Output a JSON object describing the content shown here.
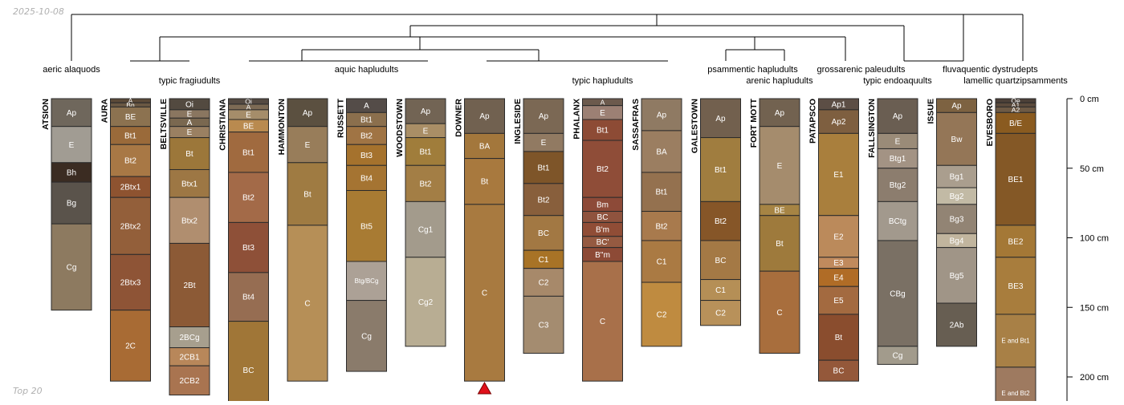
{
  "header": {
    "date_stamp": "2025-10-08"
  },
  "footer": {
    "caption": "Top 20"
  },
  "depth_axis": {
    "unit": "cm",
    "max_depth": 220,
    "ticks": [
      {
        "depth": 0,
        "label": "0 cm"
      },
      {
        "depth": 50,
        "label": "50 cm"
      },
      {
        "depth": 100,
        "label": "100 cm"
      },
      {
        "depth": 150,
        "label": "150 cm"
      },
      {
        "depth": 200,
        "label": "200 cm"
      }
    ]
  },
  "groups": [
    {
      "label": "aeric alaquods"
    },
    {
      "label": "typic fragiudults"
    },
    {
      "label": "aquic hapludults"
    },
    {
      "label": "typic hapludults"
    },
    {
      "label": "psammentic hapludults"
    },
    {
      "label": "arenic hapludults"
    },
    {
      "label": "grossarenic paleudults"
    },
    {
      "label": "typic endoaquults"
    },
    {
      "label": "fluvaquentic dystrudepts"
    },
    {
      "label": "lamellic quartzipsamments"
    }
  ],
  "profiles": [
    {
      "name": "ATSION",
      "horizons": [
        {
          "name": "Ap",
          "top": 0,
          "bottom": 20,
          "color": "#6f675c"
        },
        {
          "name": "E",
          "top": 20,
          "bottom": 46,
          "color": "#a19c93"
        },
        {
          "name": "Bh",
          "top": 46,
          "bottom": 60,
          "color": "#3b2c22"
        },
        {
          "name": "Bg",
          "top": 60,
          "bottom": 90,
          "color": "#5a534b"
        },
        {
          "name": "Cg",
          "top": 90,
          "bottom": 152,
          "color": "#8d7a60"
        }
      ]
    },
    {
      "name": "AURA",
      "horizons": [
        {
          "name": "A",
          "top": 0,
          "bottom": 3,
          "color": "#5b4a38"
        },
        {
          "name": "Bn",
          "top": 3,
          "bottom": 6,
          "color": "#6a5843"
        },
        {
          "name": "BE",
          "top": 6,
          "bottom": 20,
          "color": "#8c7250"
        },
        {
          "name": "Bt1",
          "top": 20,
          "bottom": 33,
          "color": "#9a6a3a"
        },
        {
          "name": "Bt2",
          "top": 33,
          "bottom": 56,
          "color": "#a87845"
        },
        {
          "name": "2Btx1",
          "top": 56,
          "bottom": 71,
          "color": "#8e5330"
        },
        {
          "name": "2Btx2",
          "top": 71,
          "bottom": 112,
          "color": "#935f3a"
        },
        {
          "name": "2Btx3",
          "top": 112,
          "bottom": 152,
          "color": "#8e5436"
        },
        {
          "name": "2C",
          "top": 152,
          "bottom": 203,
          "color": "#a86b34"
        }
      ]
    },
    {
      "name": "BELTSVILLE",
      "horizons": [
        {
          "name": "Oi",
          "top": 0,
          "bottom": 8,
          "color": "#534a40"
        },
        {
          "name": "E",
          "top": 8,
          "bottom": 14,
          "color": "#8a7660"
        },
        {
          "name": "A",
          "top": 14,
          "bottom": 20,
          "color": "#7a6850"
        },
        {
          "name": "E",
          "top": 20,
          "bottom": 28,
          "color": "#9a8062"
        },
        {
          "name": "Bt",
          "top": 28,
          "bottom": 51,
          "color": "#9c773a"
        },
        {
          "name": "Btx1",
          "top": 51,
          "bottom": 71,
          "color": "#9d7744"
        },
        {
          "name": "Btx2",
          "top": 71,
          "bottom": 104,
          "color": "#b08e6f"
        },
        {
          "name": "2Bt",
          "top": 104,
          "bottom": 164,
          "color": "#8c5a36"
        },
        {
          "name": "2BCg",
          "top": 164,
          "bottom": 179,
          "color": "#a79f8e"
        },
        {
          "name": "2CB1",
          "top": 179,
          "bottom": 192,
          "color": "#b8875a"
        },
        {
          "name": "2CB2",
          "top": 192,
          "bottom": 213,
          "color": "#a97450"
        }
      ]
    },
    {
      "name": "CHRISTIANA",
      "horizons": [
        {
          "name": "Oi",
          "top": 0,
          "bottom": 4,
          "color": "#544a42"
        },
        {
          "name": "A",
          "top": 4,
          "bottom": 8,
          "color": "#7d6b55"
        },
        {
          "name": "E",
          "top": 8,
          "bottom": 15,
          "color": "#a58d6a"
        },
        {
          "name": "BE",
          "top": 15,
          "bottom": 24,
          "color": "#b98a4f"
        },
        {
          "name": "Bt1",
          "top": 24,
          "bottom": 53,
          "color": "#a06a3f"
        },
        {
          "name": "Bt2",
          "top": 53,
          "bottom": 89,
          "color": "#a36a48"
        },
        {
          "name": "Bt3",
          "top": 89,
          "bottom": 125,
          "color": "#8e5038"
        },
        {
          "name": "Bt4",
          "top": 125,
          "bottom": 160,
          "color": "#966d52"
        },
        {
          "name": "BC",
          "top": 160,
          "bottom": 230,
          "color": "#a07637"
        }
      ]
    },
    {
      "name": "HAMMONTON",
      "horizons": [
        {
          "name": "Ap",
          "top": 0,
          "bottom": 20,
          "color": "#5b5040"
        },
        {
          "name": "E",
          "top": 20,
          "bottom": 46,
          "color": "#987d5a"
        },
        {
          "name": "Bt",
          "top": 46,
          "bottom": 91,
          "color": "#9f7b42"
        },
        {
          "name": "C",
          "top": 91,
          "bottom": 203,
          "color": "#b68f57"
        }
      ]
    },
    {
      "name": "RUSSETT",
      "horizons": [
        {
          "name": "A",
          "top": 0,
          "bottom": 10,
          "color": "#544c48"
        },
        {
          "name": "Bt1",
          "top": 10,
          "bottom": 20,
          "color": "#8b6f4d"
        },
        {
          "name": "Bt2",
          "top": 20,
          "bottom": 33,
          "color": "#a07444"
        },
        {
          "name": "Bt3",
          "top": 33,
          "bottom": 48,
          "color": "#a5722d"
        },
        {
          "name": "Bt4",
          "top": 48,
          "bottom": 66,
          "color": "#a57432"
        },
        {
          "name": "Bt5",
          "top": 66,
          "bottom": 117,
          "color": "#a87b33"
        },
        {
          "name": "Btg/BCg",
          "top": 117,
          "bottom": 145,
          "color": "#aca196"
        },
        {
          "name": "Cg",
          "top": 145,
          "bottom": 196,
          "color": "#8a7b6b"
        }
      ]
    },
    {
      "name": "WOODSTOWN",
      "horizons": [
        {
          "name": "Ap",
          "top": 0,
          "bottom": 18,
          "color": "#726454"
        },
        {
          "name": "E",
          "top": 18,
          "bottom": 28,
          "color": "#a98e66"
        },
        {
          "name": "Bt1",
          "top": 28,
          "bottom": 48,
          "color": "#a07d3b"
        },
        {
          "name": "Bt2",
          "top": 48,
          "bottom": 74,
          "color": "#a37e45"
        },
        {
          "name": "Cg1",
          "top": 74,
          "bottom": 114,
          "color": "#a39b8c"
        },
        {
          "name": "Cg2",
          "top": 114,
          "bottom": 178,
          "color": "#b8ad93"
        }
      ]
    },
    {
      "name": "DOWNER",
      "horizons": [
        {
          "name": "Ap",
          "top": 0,
          "bottom": 25,
          "color": "#716150"
        },
        {
          "name": "BA",
          "top": 25,
          "bottom": 43,
          "color": "#a3773c"
        },
        {
          "name": "Bt",
          "top": 43,
          "bottom": 76,
          "color": "#a8793e"
        },
        {
          "name": "C",
          "top": 76,
          "bottom": 203,
          "color": "#a87a40"
        }
      ]
    },
    {
      "name": "INGLESIDE",
      "horizons": [
        {
          "name": "Ap",
          "top": 0,
          "bottom": 25,
          "color": "#7b6854"
        },
        {
          "name": "E",
          "top": 25,
          "bottom": 38,
          "color": "#917a62"
        },
        {
          "name": "Bt1",
          "top": 38,
          "bottom": 61,
          "color": "#7e5529"
        },
        {
          "name": "Bt2",
          "top": 61,
          "bottom": 84,
          "color": "#885f3c"
        },
        {
          "name": "BC",
          "top": 84,
          "bottom": 109,
          "color": "#a27843"
        },
        {
          "name": "C1",
          "top": 109,
          "bottom": 122,
          "color": "#a87326"
        },
        {
          "name": "C2",
          "top": 122,
          "bottom": 142,
          "color": "#a7896a"
        },
        {
          "name": "C3",
          "top": 142,
          "bottom": 183,
          "color": "#a48c70"
        }
      ]
    },
    {
      "name": "PHALANX",
      "horizons": [
        {
          "name": "A",
          "top": 0,
          "bottom": 5,
          "color": "#6c5a4d"
        },
        {
          "name": "E",
          "top": 5,
          "bottom": 15,
          "color": "#9c8074"
        },
        {
          "name": "Bt1",
          "top": 15,
          "bottom": 30,
          "color": "#8d4b35"
        },
        {
          "name": "Bt2",
          "top": 30,
          "bottom": 71,
          "color": "#8f4d38"
        },
        {
          "name": "Bm",
          "top": 71,
          "bottom": 81,
          "color": "#8d4a38"
        },
        {
          "name": "BC",
          "top": 81,
          "bottom": 89,
          "color": "#8f533e"
        },
        {
          "name": "B'm",
          "top": 89,
          "bottom": 99,
          "color": "#904d36"
        },
        {
          "name": "BC'",
          "top": 99,
          "bottom": 107,
          "color": "#955a41"
        },
        {
          "name": "B''m",
          "top": 107,
          "bottom": 117,
          "color": "#8d4a36"
        },
        {
          "name": "C",
          "top": 117,
          "bottom": 203,
          "color": "#a8704a"
        }
      ]
    },
    {
      "name": "SASSAFRAS",
      "horizons": [
        {
          "name": "Ap",
          "top": 0,
          "bottom": 23,
          "color": "#8f7a63"
        },
        {
          "name": "BA",
          "top": 23,
          "bottom": 53,
          "color": "#9b7e61"
        },
        {
          "name": "Bt1",
          "top": 53,
          "bottom": 81,
          "color": "#94714f"
        },
        {
          "name": "Bt2",
          "top": 81,
          "bottom": 102,
          "color": "#a87a4d"
        },
        {
          "name": "C1",
          "top": 102,
          "bottom": 132,
          "color": "#aa7a43"
        },
        {
          "name": "C2",
          "top": 132,
          "bottom": 178,
          "color": "#bf8b40"
        }
      ]
    },
    {
      "name": "GALESTOWN",
      "horizons": [
        {
          "name": "Ap",
          "top": 0,
          "bottom": 28,
          "color": "#72604e"
        },
        {
          "name": "Bt1",
          "top": 28,
          "bottom": 74,
          "color": "#a07d3f"
        },
        {
          "name": "Bt2",
          "top": 74,
          "bottom": 102,
          "color": "#865628"
        },
        {
          "name": "BC",
          "top": 102,
          "bottom": 130,
          "color": "#a47945"
        },
        {
          "name": "C1",
          "top": 130,
          "bottom": 145,
          "color": "#b58f56"
        },
        {
          "name": "C2",
          "top": 145,
          "bottom": 163,
          "color": "#b8915a"
        }
      ]
    },
    {
      "name": "FORT MOTT",
      "horizons": [
        {
          "name": "Ap",
          "top": 0,
          "bottom": 20,
          "color": "#726250"
        },
        {
          "name": "E",
          "top": 20,
          "bottom": 76,
          "color": "#a58c6d"
        },
        {
          "name": "BE",
          "top": 76,
          "bottom": 84,
          "color": "#a68444"
        },
        {
          "name": "Bt",
          "top": 84,
          "bottom": 124,
          "color": "#9e7a3c"
        },
        {
          "name": "C",
          "top": 124,
          "bottom": 183,
          "color": "#a86e3d"
        }
      ]
    },
    {
      "name": "PATAPSCO",
      "horizons": [
        {
          "name": "Ap1",
          "top": 0,
          "bottom": 8,
          "color": "#5c4e45"
        },
        {
          "name": "Ap2",
          "top": 8,
          "bottom": 25,
          "color": "#7e5f40"
        },
        {
          "name": "E1",
          "top": 25,
          "bottom": 84,
          "color": "#a97f3d"
        },
        {
          "name": "E2",
          "top": 84,
          "bottom": 114,
          "color": "#bb8a5b"
        },
        {
          "name": "E3",
          "top": 114,
          "bottom": 122,
          "color": "#c08a5d"
        },
        {
          "name": "E4",
          "top": 122,
          "bottom": 135,
          "color": "#b06c26"
        },
        {
          "name": "E5",
          "top": 135,
          "bottom": 155,
          "color": "#a36a40"
        },
        {
          "name": "Bt",
          "top": 155,
          "bottom": 188,
          "color": "#8a4d2e"
        },
        {
          "name": "BC",
          "top": 188,
          "bottom": 203,
          "color": "#94583a"
        }
      ]
    },
    {
      "name": "FALLSINGTON",
      "horizons": [
        {
          "name": "Ap",
          "top": 0,
          "bottom": 25,
          "color": "#6a5e52"
        },
        {
          "name": "E",
          "top": 25,
          "bottom": 36,
          "color": "#9a8b78"
        },
        {
          "name": "Btg1",
          "top": 36,
          "bottom": 50,
          "color": "#a39384"
        },
        {
          "name": "Btg2",
          "top": 50,
          "bottom": 74,
          "color": "#8c7d6e"
        },
        {
          "name": "BCtg",
          "top": 74,
          "bottom": 102,
          "color": "#a2998d"
        },
        {
          "name": "CBg",
          "top": 102,
          "bottom": 178,
          "color": "#7a7064"
        },
        {
          "name": "Cg",
          "top": 178,
          "bottom": 191,
          "color": "#a29b8c"
        }
      ]
    },
    {
      "name": "ISSUE",
      "horizons": [
        {
          "name": "Ap",
          "top": 0,
          "bottom": 10,
          "color": "#7d6241"
        },
        {
          "name": "Bw",
          "top": 10,
          "bottom": 48,
          "color": "#947657"
        },
        {
          "name": "Bg1",
          "top": 48,
          "bottom": 64,
          "color": "#aa9e8e"
        },
        {
          "name": "Bg2",
          "top": 64,
          "bottom": 76,
          "color": "#c2baa5"
        },
        {
          "name": "Bg3",
          "top": 76,
          "bottom": 97,
          "color": "#928474"
        },
        {
          "name": "Bg4",
          "top": 97,
          "bottom": 107,
          "color": "#c1b59e"
        },
        {
          "name": "Bg5",
          "top": 107,
          "bottom": 147,
          "color": "#a09587"
        },
        {
          "name": "2Ab",
          "top": 147,
          "bottom": 178,
          "color": "#675e52"
        }
      ]
    },
    {
      "name": "EVESBORO",
      "horizons": [
        {
          "name": "Oe",
          "top": 0,
          "bottom": 3,
          "color": "#4c4038"
        },
        {
          "name": "A1",
          "top": 3,
          "bottom": 6,
          "color": "#5c4b3c"
        },
        {
          "name": "A2",
          "top": 6,
          "bottom": 10,
          "color": "#6e5a45"
        },
        {
          "name": "B/E",
          "top": 10,
          "bottom": 25,
          "color": "#8a5b20"
        },
        {
          "name": "BE1",
          "top": 25,
          "bottom": 91,
          "color": "#845826"
        },
        {
          "name": "BE2",
          "top": 91,
          "bottom": 114,
          "color": "#a47836"
        },
        {
          "name": "BE3",
          "top": 114,
          "bottom": 155,
          "color": "#a87d3d"
        },
        {
          "name": "E and Bt1",
          "top": 155,
          "bottom": 193,
          "color": "#a88046"
        },
        {
          "name": "E and Bt2",
          "top": 193,
          "bottom": 230,
          "color": "#9e7a60"
        }
      ]
    }
  ]
}
